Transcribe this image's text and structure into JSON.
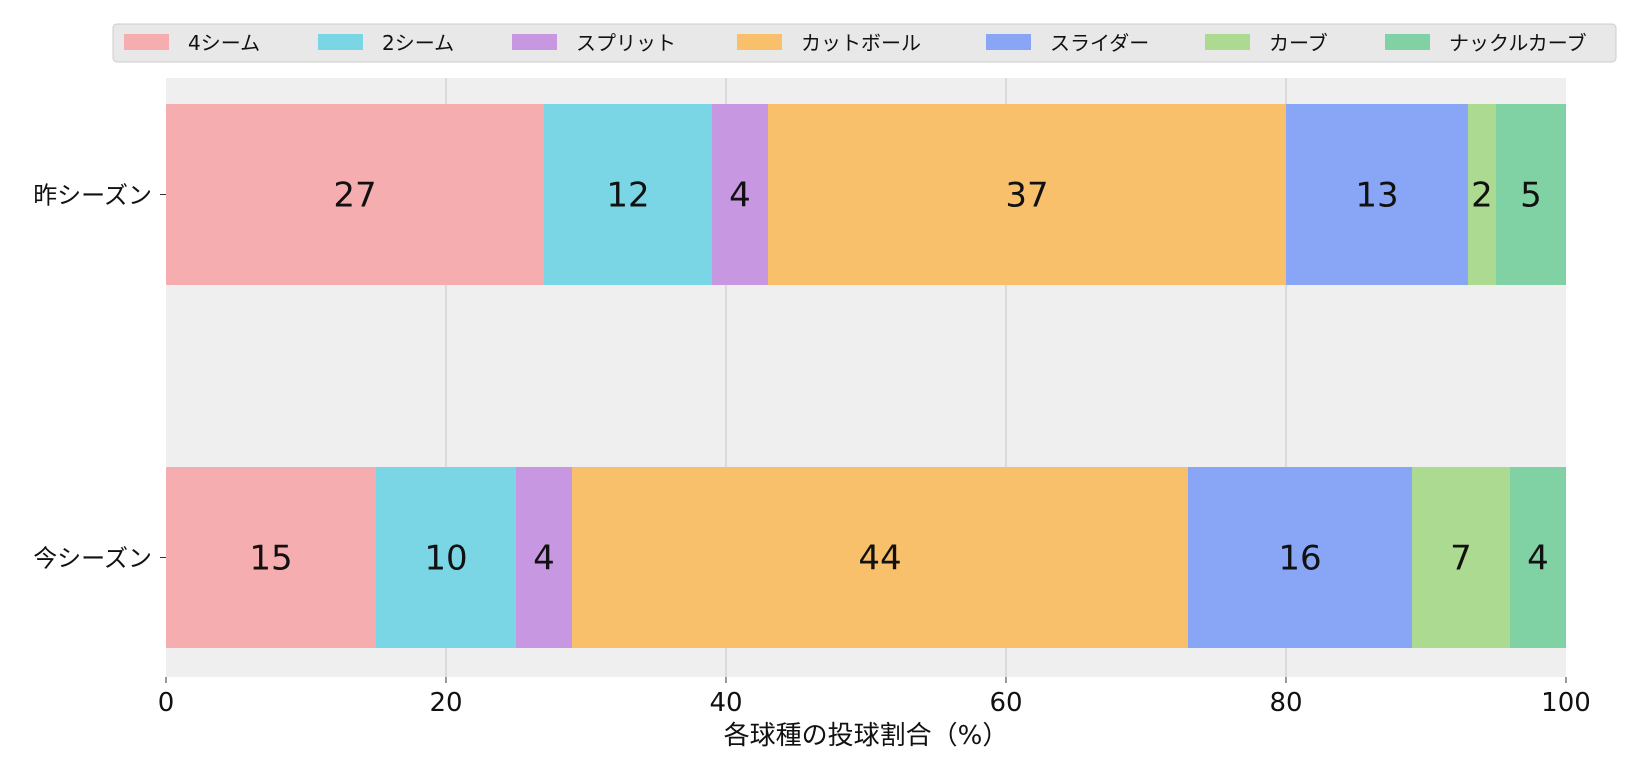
{
  "chart_data": {
    "type": "bar",
    "orientation": "horizontal",
    "stacked": true,
    "categories": [
      "昨シーズン",
      "今シーズン"
    ],
    "series": [
      {
        "name": "4シーム",
        "color": "#f6adaf",
        "values": [
          27,
          15
        ]
      },
      {
        "name": "2シーム",
        "color": "#7ad6e5",
        "values": [
          12,
          10
        ]
      },
      {
        "name": "スプリット",
        "color": "#c897e2",
        "values": [
          4,
          4
        ]
      },
      {
        "name": "カットボール",
        "color": "#f8c06b",
        "values": [
          37,
          44
        ]
      },
      {
        "name": "スライダー",
        "color": "#88a6f5",
        "values": [
          13,
          16
        ]
      },
      {
        "name": "カーブ",
        "color": "#acda90",
        "values": [
          2,
          7
        ]
      },
      {
        "name": "ナックルカーブ",
        "color": "#80d1a4",
        "values": [
          5,
          4
        ]
      }
    ],
    "xlabel": "各球種の投球割合（%）",
    "ylabel": "",
    "xlim": [
      0,
      100
    ],
    "xticks": [
      "0",
      "20",
      "40",
      "60",
      "80",
      "100"
    ],
    "grid": "vertical",
    "legend_position": "top",
    "plot_background": "#efefef",
    "gridline_color": "#cccccc"
  }
}
